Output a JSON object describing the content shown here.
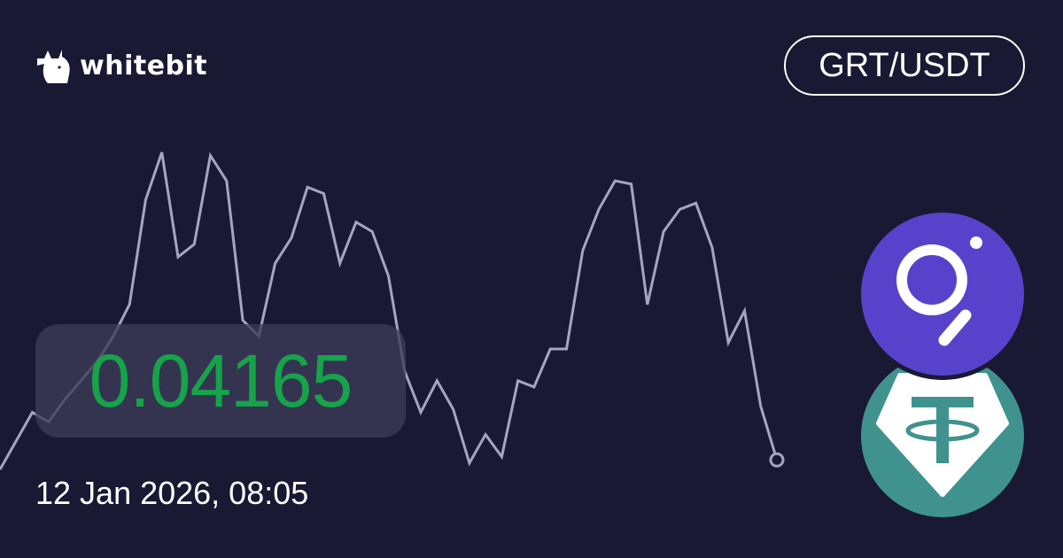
{
  "brand": {
    "name": "whitebit"
  },
  "pair": "GRT/USDT",
  "price": "0.04165",
  "timestamp": "12 Jan 2026, 08:05",
  "colors": {
    "background": "#191934",
    "price": "#16a34a",
    "line": "#a5a5bf",
    "grt": "#5942cb",
    "usdt": "#40928f"
  },
  "icons": {
    "base": "grt-icon",
    "quote": "usdt-icon",
    "logo": "whitebit-logo-icon"
  },
  "chart_data": {
    "type": "line",
    "title": "",
    "xlabel": "",
    "ylabel": "",
    "grid": false,
    "axes": false,
    "values": [
      0,
      9,
      18,
      15,
      22,
      28,
      34,
      42,
      52,
      85,
      100,
      67,
      71,
      99,
      91,
      47,
      42,
      65,
      73,
      89,
      87,
      65,
      78,
      75,
      61,
      31,
      18,
      28,
      19,
      2,
      11,
      4,
      28,
      26,
      38,
      38,
      69,
      82,
      91,
      90,
      52,
      75,
      82,
      84,
      70,
      40,
      50,
      20,
      3
    ],
    "last_point_marker": true
  }
}
